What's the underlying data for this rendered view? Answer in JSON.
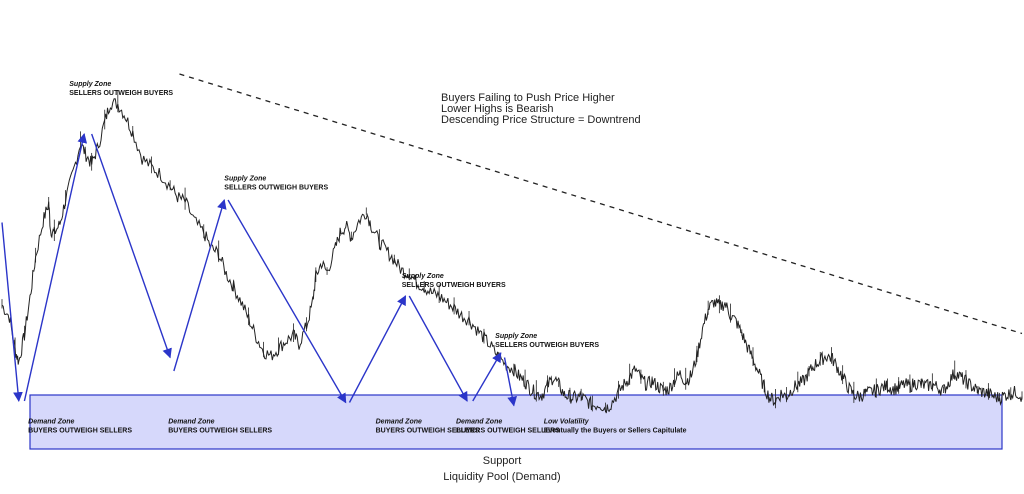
{
  "chart_data": {
    "type": "line",
    "title": "",
    "xlabel": "",
    "ylabel": "",
    "grid": false,
    "legend": "none",
    "support_band": {
      "y_low": 0,
      "y_high": 1
    },
    "price_path": [
      {
        "t": 0,
        "y": 7.0
      },
      {
        "t": 4,
        "y": 6.2
      },
      {
        "t": 7,
        "y": 4.0
      },
      {
        "t": 9,
        "y": 3.2
      },
      {
        "t": 12,
        "y": 5.0
      },
      {
        "t": 15,
        "y": 7.5
      },
      {
        "t": 18,
        "y": 10.2
      },
      {
        "t": 22,
        "y": 12.6
      },
      {
        "t": 25,
        "y": 13.8
      },
      {
        "t": 26,
        "y": 12.0
      },
      {
        "t": 28,
        "y": 11.8
      },
      {
        "t": 31,
        "y": 12.4
      },
      {
        "t": 34,
        "y": 14.0
      },
      {
        "t": 38,
        "y": 15.8
      },
      {
        "t": 42,
        "y": 17.8
      },
      {
        "t": 45,
        "y": 17.0
      },
      {
        "t": 48,
        "y": 16.4
      },
      {
        "t": 51,
        "y": 17.4
      },
      {
        "t": 55,
        "y": 19.2
      },
      {
        "t": 58,
        "y": 20.5
      },
      {
        "t": 62,
        "y": 20.4
      },
      {
        "t": 66,
        "y": 19.6
      },
      {
        "t": 70,
        "y": 18.5
      },
      {
        "t": 75,
        "y": 16.8
      },
      {
        "t": 80,
        "y": 16.2
      },
      {
        "t": 85,
        "y": 15.7
      },
      {
        "t": 90,
        "y": 14.9
      },
      {
        "t": 94,
        "y": 14.2
      },
      {
        "t": 98,
        "y": 13.9
      },
      {
        "t": 103,
        "y": 12.6
      },
      {
        "t": 108,
        "y": 11.8
      },
      {
        "t": 112,
        "y": 10.8
      },
      {
        "t": 116,
        "y": 10.4
      },
      {
        "t": 120,
        "y": 9.1
      },
      {
        "t": 124,
        "y": 8.2
      },
      {
        "t": 128,
        "y": 7.2
      },
      {
        "t": 132,
        "y": 6.1
      },
      {
        "t": 136,
        "y": 4.9
      },
      {
        "t": 140,
        "y": 3.9
      },
      {
        "t": 144,
        "y": 3.6
      },
      {
        "t": 148,
        "y": 4.1
      },
      {
        "t": 152,
        "y": 4.6
      },
      {
        "t": 156,
        "y": 5.0
      },
      {
        "t": 159,
        "y": 4.4
      },
      {
        "t": 163,
        "y": 5.6
      },
      {
        "t": 166,
        "y": 7.0
      },
      {
        "t": 168,
        "y": 8.9
      },
      {
        "t": 171,
        "y": 9.8
      },
      {
        "t": 174,
        "y": 9.2
      },
      {
        "t": 178,
        "y": 10.6
      },
      {
        "t": 181,
        "y": 11.8
      },
      {
        "t": 184,
        "y": 12.3
      },
      {
        "t": 187,
        "y": 11.5
      },
      {
        "t": 191,
        "y": 12.6
      },
      {
        "t": 195,
        "y": 13.2
      },
      {
        "t": 198,
        "y": 12.2
      },
      {
        "t": 202,
        "y": 11.2
      },
      {
        "t": 206,
        "y": 10.6
      },
      {
        "t": 210,
        "y": 10.0
      },
      {
        "t": 214,
        "y": 9.3
      },
      {
        "t": 218,
        "y": 9.1
      },
      {
        "t": 222,
        "y": 8.5
      },
      {
        "t": 226,
        "y": 8.2
      },
      {
        "t": 230,
        "y": 7.8
      },
      {
        "t": 234,
        "y": 7.6
      },
      {
        "t": 238,
        "y": 7.2
      },
      {
        "t": 242,
        "y": 6.8
      },
      {
        "t": 246,
        "y": 6.3
      },
      {
        "t": 250,
        "y": 6.0
      },
      {
        "t": 254,
        "y": 5.4
      },
      {
        "t": 258,
        "y": 4.8
      },
      {
        "t": 262,
        "y": 4.2
      },
      {
        "t": 266,
        "y": 3.5
      },
      {
        "t": 270,
        "y": 3.0
      },
      {
        "t": 274,
        "y": 2.7
      },
      {
        "t": 277,
        "y": 2.2
      },
      {
        "t": 280,
        "y": 1.9
      },
      {
        "t": 283,
        "y": 1.4
      },
      {
        "t": 286,
        "y": 1.1
      },
      {
        "t": 289,
        "y": 1.0
      },
      {
        "t": 292,
        "y": 1.6
      },
      {
        "t": 295,
        "y": 2.2
      },
      {
        "t": 298,
        "y": 1.7
      },
      {
        "t": 301,
        "y": 1.0
      },
      {
        "t": 304,
        "y": 0.9
      },
      {
        "t": 307,
        "y": 0.8
      },
      {
        "t": 310,
        "y": 0.9
      },
      {
        "t": 313,
        "y": 0.6
      },
      {
        "t": 316,
        "y": 0.3
      },
      {
        "t": 320,
        "y": 0.4
      },
      {
        "t": 323,
        "y": 0.1
      },
      {
        "t": 326,
        "y": 0.4
      },
      {
        "t": 330,
        "y": 1.2
      },
      {
        "t": 333,
        "y": 1.7
      },
      {
        "t": 336,
        "y": 2.2
      },
      {
        "t": 339,
        "y": 2.7
      },
      {
        "t": 342,
        "y": 2.1
      },
      {
        "t": 345,
        "y": 1.7
      },
      {
        "t": 348,
        "y": 1.9
      },
      {
        "t": 351,
        "y": 1.6
      },
      {
        "t": 354,
        "y": 1.3
      },
      {
        "t": 357,
        "y": 1.4
      },
      {
        "t": 360,
        "y": 2.0
      },
      {
        "t": 363,
        "y": 2.4
      },
      {
        "t": 366,
        "y": 1.9
      },
      {
        "t": 369,
        "y": 2.3
      },
      {
        "t": 372,
        "y": 3.6
      },
      {
        "t": 375,
        "y": 5.4
      },
      {
        "t": 378,
        "y": 6.7
      },
      {
        "t": 381,
        "y": 7.2
      },
      {
        "t": 384,
        "y": 6.9
      },
      {
        "t": 387,
        "y": 7.1
      },
      {
        "t": 390,
        "y": 6.3
      },
      {
        "t": 393,
        "y": 5.9
      },
      {
        "t": 396,
        "y": 5.1
      },
      {
        "t": 399,
        "y": 4.2
      },
      {
        "t": 402,
        "y": 3.4
      },
      {
        "t": 405,
        "y": 2.5
      },
      {
        "t": 408,
        "y": 1.5
      },
      {
        "t": 411,
        "y": 0.8
      },
      {
        "t": 414,
        "y": 0.6
      },
      {
        "t": 417,
        "y": 1.1
      },
      {
        "t": 420,
        "y": 0.9
      },
      {
        "t": 423,
        "y": 1.4
      },
      {
        "t": 426,
        "y": 1.7
      },
      {
        "t": 429,
        "y": 1.9
      },
      {
        "t": 432,
        "y": 2.5
      },
      {
        "t": 435,
        "y": 3.0
      },
      {
        "t": 438,
        "y": 3.3
      },
      {
        "t": 441,
        "y": 3.6
      },
      {
        "t": 444,
        "y": 3.5
      },
      {
        "t": 447,
        "y": 2.9
      },
      {
        "t": 450,
        "y": 2.2
      },
      {
        "t": 453,
        "y": 1.5
      },
      {
        "t": 456,
        "y": 1.0
      },
      {
        "t": 459,
        "y": 0.9
      },
      {
        "t": 462,
        "y": 1.1
      },
      {
        "t": 465,
        "y": 1.2
      },
      {
        "t": 468,
        "y": 1.3
      },
      {
        "t": 471,
        "y": 1.5
      },
      {
        "t": 474,
        "y": 1.6
      },
      {
        "t": 477,
        "y": 1.4
      },
      {
        "t": 480,
        "y": 1.5
      },
      {
        "t": 483,
        "y": 1.7
      },
      {
        "t": 486,
        "y": 1.6
      },
      {
        "t": 489,
        "y": 1.8
      },
      {
        "t": 492,
        "y": 1.7
      },
      {
        "t": 495,
        "y": 1.6
      },
      {
        "t": 498,
        "y": 1.7
      },
      {
        "t": 501,
        "y": 1.5
      },
      {
        "t": 504,
        "y": 1.3
      },
      {
        "t": 507,
        "y": 1.9
      },
      {
        "t": 510,
        "y": 2.5
      },
      {
        "t": 513,
        "y": 2.2
      },
      {
        "t": 516,
        "y": 1.9
      },
      {
        "t": 519,
        "y": 1.6
      },
      {
        "t": 522,
        "y": 1.3
      },
      {
        "t": 525,
        "y": 1.2
      },
      {
        "t": 528,
        "y": 1.1
      },
      {
        "t": 531,
        "y": 0.9
      },
      {
        "t": 534,
        "y": 0.8
      },
      {
        "t": 537,
        "y": 1.0
      },
      {
        "t": 540,
        "y": 1.1
      },
      {
        "t": 543,
        "y": 1.2
      },
      {
        "t": 546,
        "y": 0.9
      }
    ],
    "trendline": [
      {
        "t": 95,
        "y": 22.4
      },
      {
        "t": 546,
        "y": 5.1
      }
    ],
    "move_arrows": [
      {
        "from": {
          "t": 0,
          "y": 12.5
        },
        "to": {
          "t": 9,
          "y": 0.6
        }
      },
      {
        "from": {
          "t": 12,
          "y": 0.6
        },
        "to": {
          "t": 44,
          "y": 18.4
        }
      },
      {
        "from": {
          "t": 48,
          "y": 18.4
        },
        "to": {
          "t": 90,
          "y": 3.5
        }
      },
      {
        "from": {
          "t": 92,
          "y": 2.6
        },
        "to": {
          "t": 119,
          "y": 14.0
        }
      },
      {
        "from": {
          "t": 121,
          "y": 14.0
        },
        "to": {
          "t": 184,
          "y": 0.5
        }
      },
      {
        "from": {
          "t": 186,
          "y": 0.5
        },
        "to": {
          "t": 216,
          "y": 7.6
        }
      },
      {
        "from": {
          "t": 218,
          "y": 7.6
        },
        "to": {
          "t": 249,
          "y": 0.6
        }
      },
      {
        "from": {
          "t": 252,
          "y": 0.6
        },
        "to": {
          "t": 267,
          "y": 3.8
        }
      },
      {
        "from": {
          "t": 269,
          "y": 3.5
        },
        "to": {
          "t": 274,
          "y": 0.3
        }
      }
    ],
    "annotations": [
      {
        "title": "Supply Zone",
        "text": "SELLERS OUTWEIGH BUYERS",
        "t": 36,
        "y": 21.6
      },
      {
        "title": "Supply Zone",
        "text": "SELLERS OUTWEIGH BUYERS",
        "t": 119,
        "y": 15.3
      },
      {
        "title": "Supply Zone",
        "text": "SELLERS OUTWEIGH BUYERS",
        "t": 214,
        "y": 8.8
      },
      {
        "title": "Supply Zone",
        "text": "SELLERS OUTWEIGH BUYERS",
        "t": 264,
        "y": 4.8
      },
      {
        "title": "Demand Zone",
        "text": "BUYERS OUTWEIGH SELLERS",
        "t": 14,
        "y": -0.9
      },
      {
        "title": "Demand Zone",
        "text": "BUYERS OUTWEIGH SELLERS",
        "t": 89,
        "y": -0.9
      },
      {
        "title": "Demand Zone",
        "text": "BUYERS OUTWEIGH SELLERS",
        "t": 200,
        "y": -0.9
      },
      {
        "title": "Demand Zone",
        "text": "BUYERS OUTWEIGH SELLERS",
        "t": 243,
        "y": -0.9
      },
      {
        "title": "Low Volatility",
        "text": "Eventually the Buyers or Sellers Capitulate",
        "t": 290,
        "y": -0.9
      }
    ],
    "info_text": [
      "Buyers Failing to Push Price Higher",
      "Lower Highs is Bearish",
      "Descending Price Structure = Downtrend"
    ],
    "caption": "Support",
    "sub_caption": "Liquidity Pool (Demand)"
  },
  "colors": {
    "price": "#222222",
    "arrow": "#2b35c9",
    "band_fill": "#d6d8fb",
    "band_stroke": "#2b35c9",
    "trendline": "#222222"
  }
}
